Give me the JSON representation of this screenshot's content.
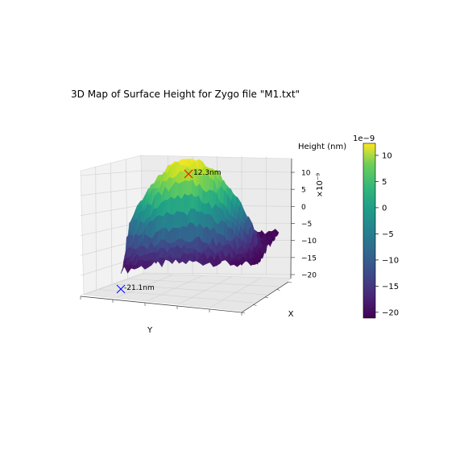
{
  "chart_data": {
    "type": "surface3d",
    "title": "3D Map of Surface Height for Zygo file \"M1.txt\"",
    "xlabel": "X",
    "ylabel": "Y",
    "zlabel": "Height (nm)",
    "z_multiplier": "×10⁻⁹",
    "zlim": [
      -21.1,
      12.3
    ],
    "z_ticks": [
      10,
      5,
      0,
      -5,
      -10,
      -15,
      -20
    ],
    "colormap": "viridis",
    "grid": true,
    "annotations": [
      {
        "label": "12.3nm",
        "kind": "max",
        "marker_color": "#ff0000",
        "z": 12.3
      },
      {
        "label": "-21.1nm",
        "kind": "min",
        "marker_color": "#0000ff",
        "z": -21.1
      }
    ],
    "colorbar": {
      "multiplier": "1e−9",
      "range": [
        -21.1,
        12.3
      ],
      "ticks": [
        10,
        5,
        0,
        -5,
        -10,
        -15,
        -20
      ],
      "tick_labels": [
        "10",
        "5",
        "0",
        "−5",
        "−10",
        "−15",
        "−20"
      ]
    },
    "z_tick_labels": [
      "10",
      "5",
      "0",
      "−5",
      "−10",
      "−15",
      "−20"
    ]
  }
}
